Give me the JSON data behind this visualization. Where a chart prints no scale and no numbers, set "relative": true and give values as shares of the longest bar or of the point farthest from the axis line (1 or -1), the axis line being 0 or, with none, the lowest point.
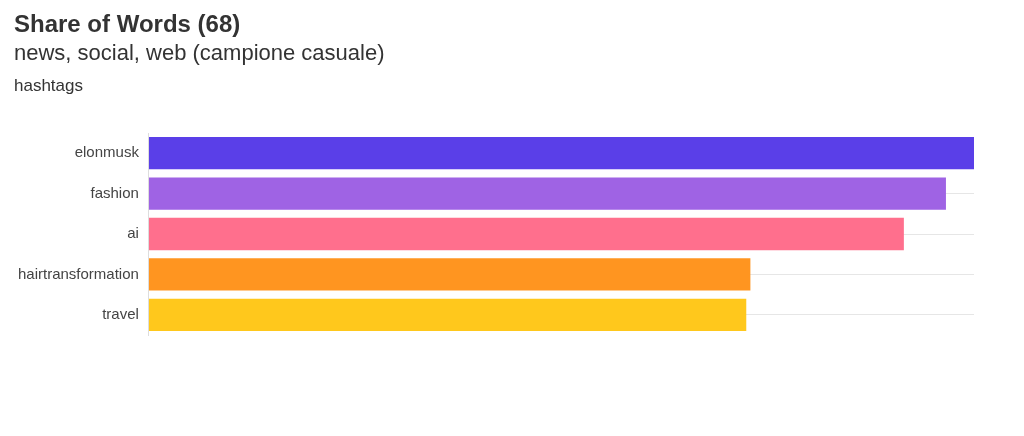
{
  "chart_data": {
    "type": "bar",
    "orientation": "horizontal",
    "relative": true,
    "title": "Share of Words (68)",
    "subtitle": "news, social, web (campione casuale)",
    "ylabel": "hashtags",
    "categories": [
      "elonmusk",
      "fashion",
      "ai",
      "hairtransformation",
      "travel"
    ],
    "values": [
      1,
      0.966,
      0.915,
      0.729,
      0.724
    ],
    "colors": [
      "#5a3fe8",
      "#9f63e4",
      "#ff6f8d",
      "#ff9520",
      "#ffc81c"
    ],
    "grid": "y",
    "legend": false
  }
}
